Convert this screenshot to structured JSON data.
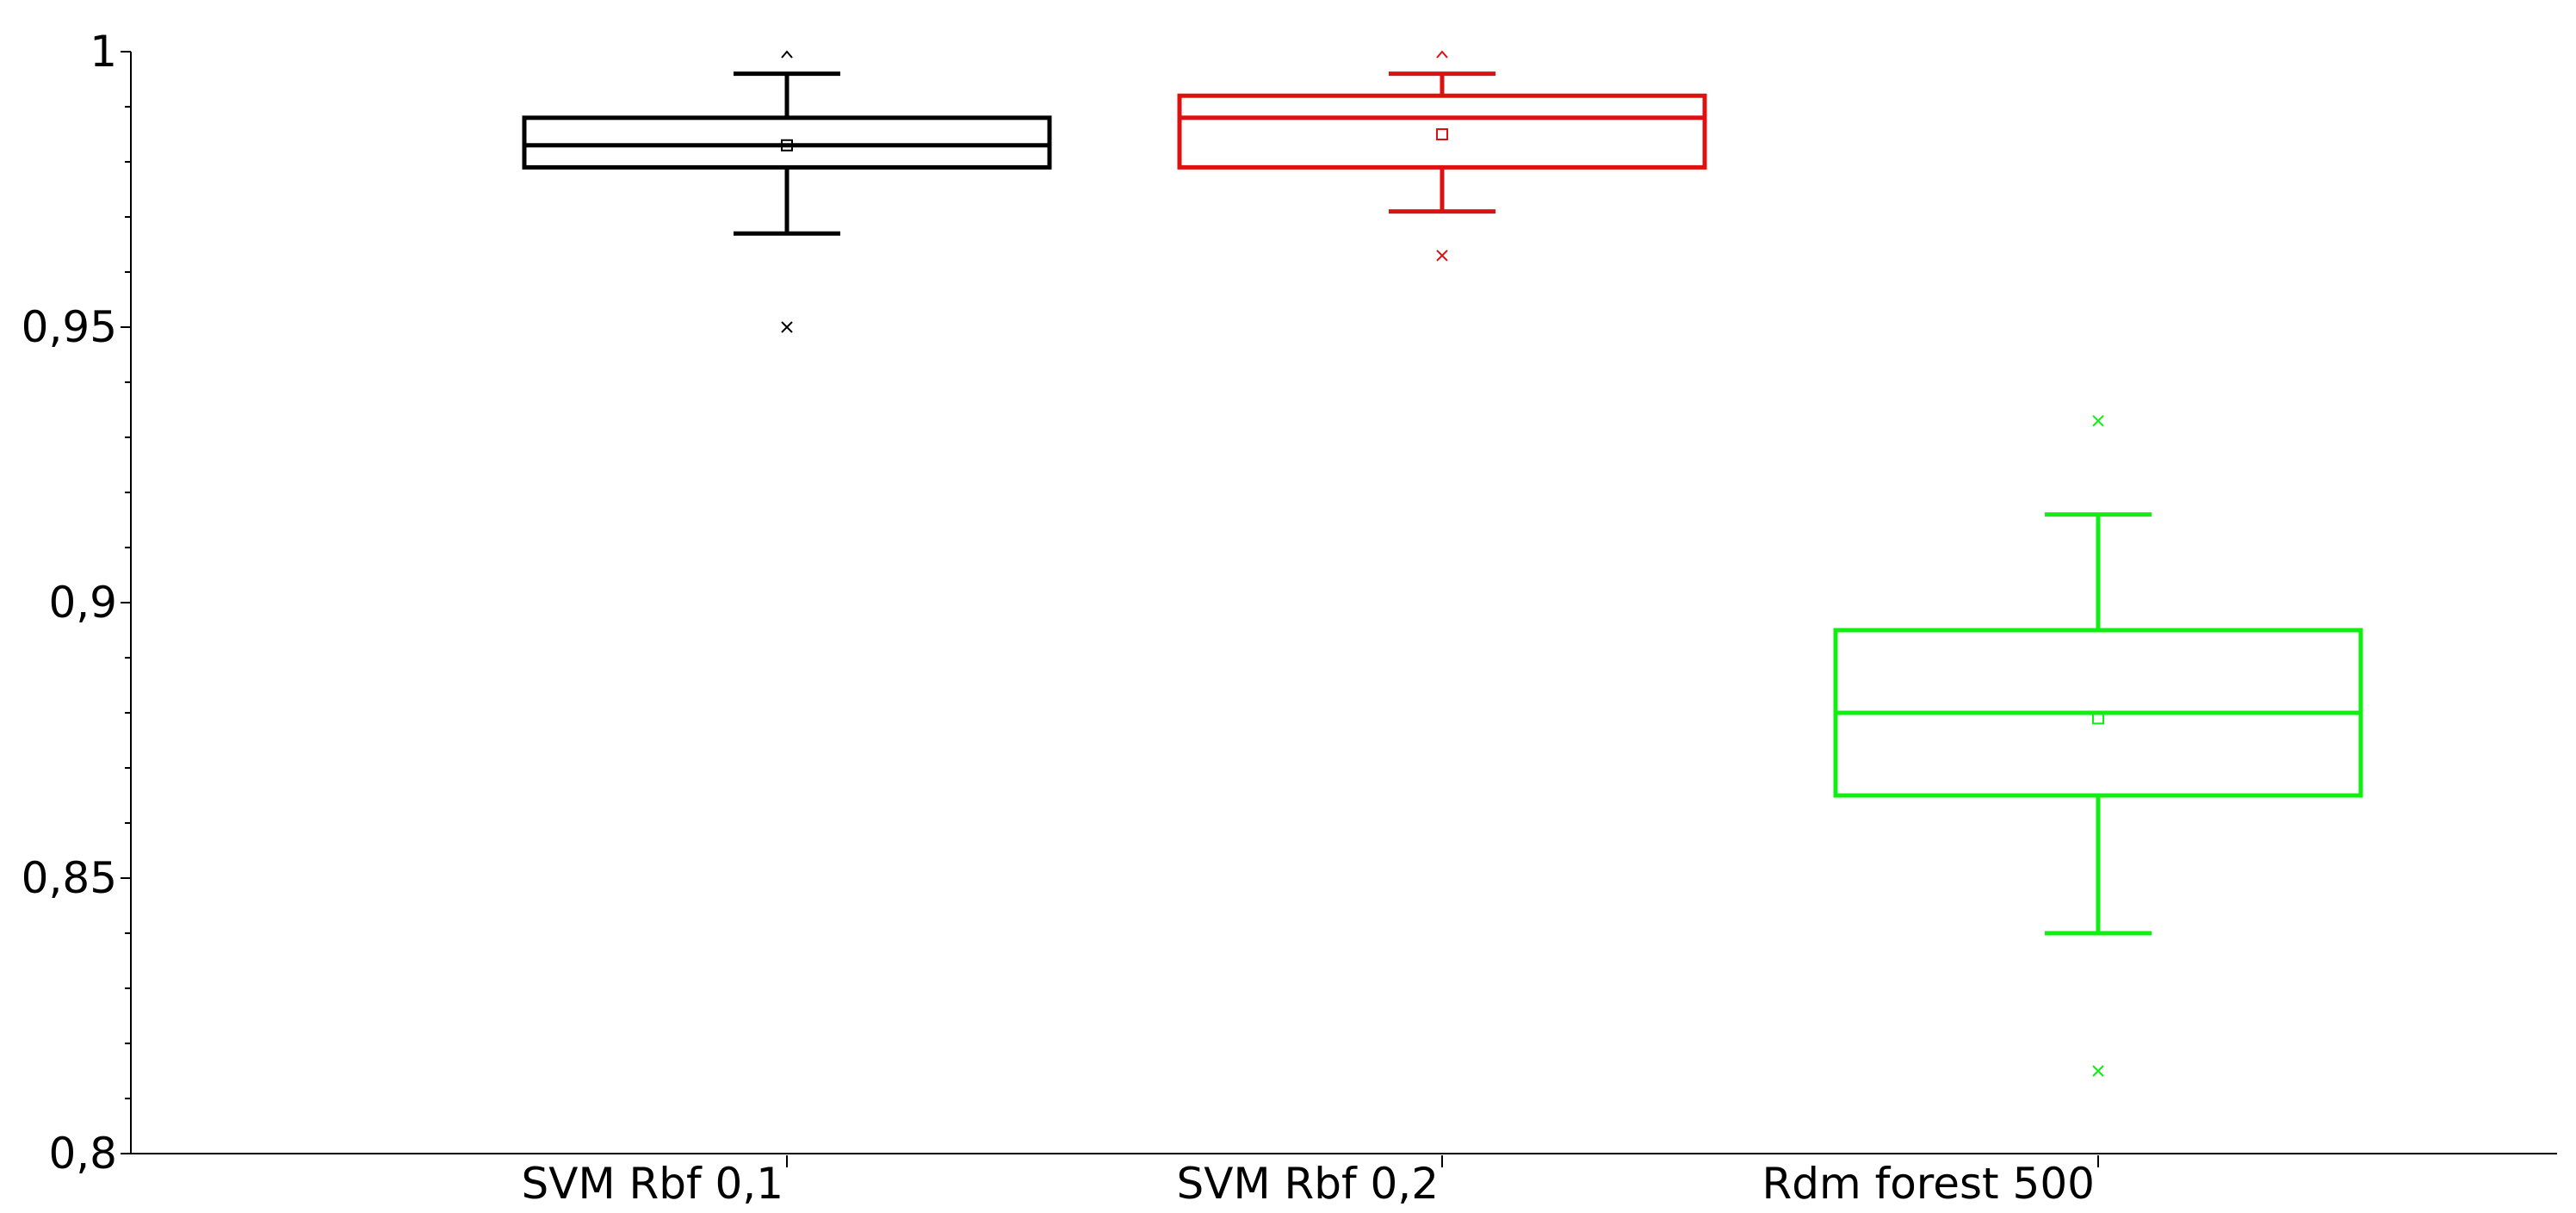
{
  "chart_data": {
    "type": "boxplot",
    "ylim": [
      0.8,
      1.0
    ],
    "y_ticks": [
      {
        "value": 0.8,
        "label": "0,8"
      },
      {
        "value": 0.85,
        "label": "0,85"
      },
      {
        "value": 0.9,
        "label": "0,9"
      },
      {
        "value": 0.95,
        "label": "0,95"
      },
      {
        "value": 1.0,
        "label": "1"
      }
    ],
    "y_minor_step": 0.01,
    "grid": false,
    "categories": [
      "SVM Rbf 0,1",
      "SVM Rbf 0,2",
      "Rdm forest 500"
    ],
    "series": [
      {
        "label": "SVM Rbf 0,1",
        "color": "#000000",
        "whisker_low": 0.967,
        "q1": 0.979,
        "median": 0.983,
        "q3": 0.988,
        "whisker_high": 0.996,
        "mean": 0.983,
        "outliers_low": [
          0.95
        ],
        "max_marker": 1.0
      },
      {
        "label": "SVM Rbf 0,2",
        "color": "#dd1111",
        "whisker_low": 0.971,
        "q1": 0.979,
        "median": 0.988,
        "q3": 0.992,
        "whisker_high": 0.996,
        "mean": 0.985,
        "outliers_low": [
          0.963
        ],
        "max_marker": 1.0
      },
      {
        "label": "Rdm forest 500",
        "color": "#11ee11",
        "whisker_low": 0.84,
        "q1": 0.865,
        "median": 0.88,
        "q3": 0.895,
        "whisker_high": 0.916,
        "mean": 0.879,
        "outliers_low": [
          0.815
        ],
        "outliers_high": [
          0.933
        ]
      }
    ]
  }
}
